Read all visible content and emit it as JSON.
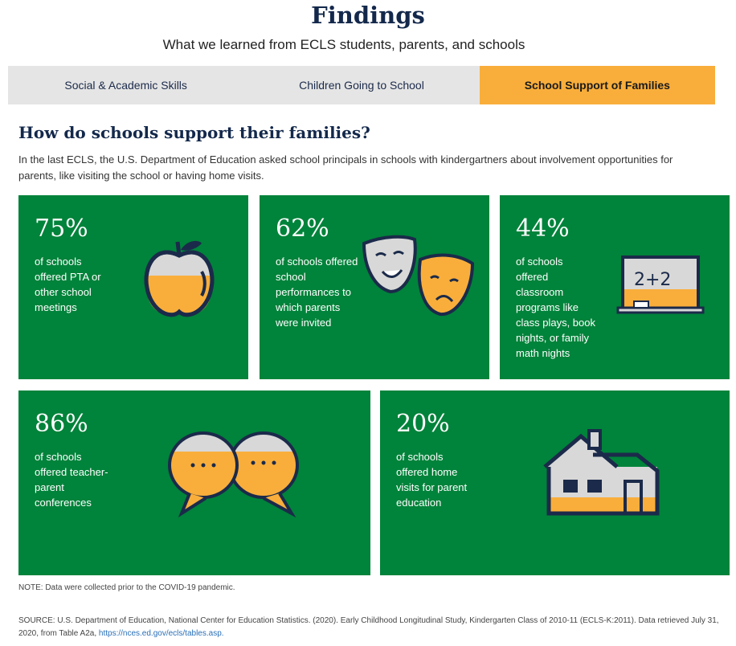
{
  "header": {
    "title": "Findings",
    "subtitle": "What we learned from ECLS students, parents, and schools"
  },
  "tabs": [
    {
      "label": "Social & Academic Skills",
      "active": false
    },
    {
      "label": "Children Going to School",
      "active": false
    },
    {
      "label": "School Support of Families",
      "active": true
    }
  ],
  "section": {
    "title": "How do schools support their families?",
    "intro": "In the last ECLS, the U.S. Department of Education asked school principals in schools with kindergartners about involvement opportunities for parents, like visiting the school or having home visits."
  },
  "colors": {
    "card_bg": "#00833a",
    "accent": "#f9ae3b",
    "navy": "#13284b",
    "tab_bg": "#e5e5e5"
  },
  "cards": [
    {
      "percent": "75%",
      "text": "of schools offered PTA or other school meetings",
      "icon": "apple-icon"
    },
    {
      "percent": "62%",
      "text": "of schools offered school performances to which parents were invited",
      "icon": "theater-masks-icon"
    },
    {
      "percent": "44%",
      "text": "of schools offered classroom programs like class plays, book nights, or family math nights",
      "icon": "chalkboard-icon",
      "board_text": "2+2"
    },
    {
      "percent": "86%",
      "text": "of schools offered teacher-parent conferences",
      "icon": "speech-bubbles-icon"
    },
    {
      "percent": "20%",
      "text": "of schools offered home visits for parent education",
      "icon": "house-icon"
    }
  ],
  "footer": {
    "note": "NOTE: Data were collected prior to the COVID-19 pandemic.",
    "source": "SOURCE: U.S. Department of Education, National Center for Education Statistics. (2020). Early Childhood Longitudinal Study, Kindergarten Class of 2010-11 (ECLS-K:2011). Data retrieved July 31, 2020, from Table A2a, ",
    "link": "https://nces.ed.gov/ecls/tables.asp."
  }
}
